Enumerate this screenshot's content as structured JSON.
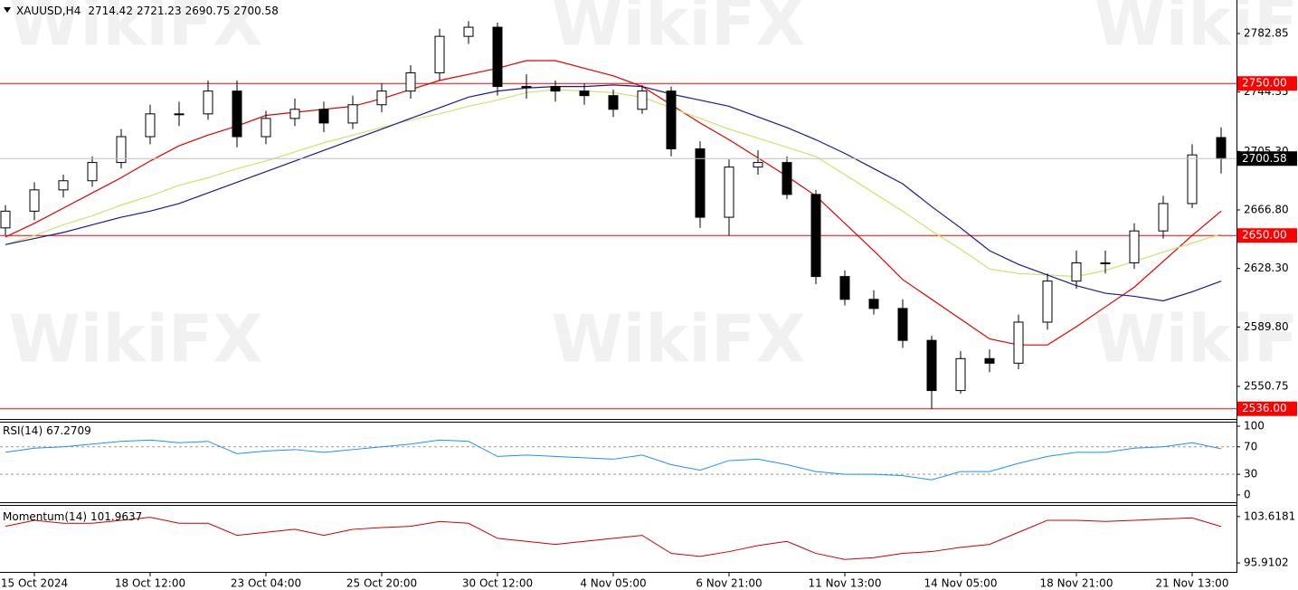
{
  "chart_data": [
    {
      "type": "candlestick",
      "title": "XAUUSD,H4",
      "watermark": "WikiFX",
      "categories": [
        null,
        "15 Oct 2024",
        null,
        null,
        null,
        "18 Oct 12:00",
        null,
        null,
        null,
        "23 Oct 04:00",
        null,
        null,
        null,
        "25 Oct 20:00",
        null,
        null,
        null,
        "30 Oct 12:00",
        null,
        null,
        null,
        "4 Nov 05:00",
        null,
        null,
        null,
        "6 Nov 21:00",
        null,
        null,
        null,
        "11 Nov 13:00",
        null,
        null,
        null,
        "14 Nov 05:00",
        null,
        null,
        null,
        "18 Nov 21:00",
        null,
        null,
        null,
        "21 Nov 13:00",
        null
      ],
      "open": [
        2655,
        2666,
        2680,
        2686,
        2698,
        2715,
        2730,
        2730,
        2745,
        2715,
        2727,
        2733,
        2724,
        2736,
        2745,
        2757,
        2781,
        2787,
        2748,
        2748,
        2745,
        2742,
        2733,
        2745,
        2707,
        2662,
        2695,
        2698,
        2677,
        2623,
        2608,
        2602,
        2581,
        2548,
        2569,
        2566,
        2593,
        2620,
        2632,
        2632,
        2653,
        2671,
        2714.42
      ],
      "high": [
        2670,
        2685,
        2690,
        2702,
        2720,
        2736,
        2738,
        2752,
        2752,
        2732,
        2740,
        2738,
        2742,
        2750,
        2762,
        2786,
        2791,
        2790,
        2756,
        2752,
        2750,
        2746,
        2749,
        2748,
        2712,
        2700,
        2706,
        2702,
        2680,
        2627,
        2614,
        2608,
        2584,
        2574,
        2575,
        2598,
        2625,
        2640,
        2640,
        2658,
        2676,
        2710,
        2721.23
      ],
      "low": [
        2650,
        2660,
        2675,
        2682,
        2694,
        2710,
        2722,
        2726,
        2708,
        2710,
        2722,
        2718,
        2720,
        2731,
        2740,
        2752,
        2776,
        2742,
        2740,
        2738,
        2736,
        2728,
        2730,
        2702,
        2655,
        2650,
        2690,
        2674,
        2618,
        2604,
        2598,
        2576,
        2536,
        2546,
        2560,
        2562,
        2588,
        2615,
        2625,
        2628,
        2648,
        2668,
        2690.75
      ],
      "close": [
        2666,
        2680,
        2686,
        2698,
        2715,
        2730,
        2730,
        2745,
        2715,
        2727,
        2733,
        2724,
        2736,
        2745,
        2757,
        2781,
        2787,
        2748,
        2748,
        2745,
        2742,
        2733,
        2745,
        2707,
        2662,
        2695,
        2698,
        2677,
        2623,
        2608,
        2602,
        2581,
        2548,
        2569,
        2566,
        2593,
        2620,
        2632,
        2632,
        2653,
        2671,
        2703,
        2700.58
      ],
      "ma_lines": [
        {
          "color": "#e00000",
          "values": [
            2649,
            2658,
            2668,
            2678,
            2688,
            2699,
            2709,
            2716,
            2722,
            2729,
            2731,
            2733,
            2735,
            2740,
            2746,
            2752,
            2756,
            2760,
            2765,
            2765,
            2760,
            2755,
            2748,
            2736,
            2724,
            2713,
            2701,
            2689,
            2676,
            2658,
            2640,
            2621,
            2608,
            2595,
            2582,
            2578,
            2578,
            2590,
            2603,
            2616,
            2633,
            2650,
            2666
          ]
        },
        {
          "color": "#c8e66a",
          "values": [
            2644,
            2650,
            2657,
            2663,
            2670,
            2676,
            2683,
            2688,
            2694,
            2699,
            2705,
            2711,
            2716,
            2721,
            2726,
            2730,
            2735,
            2739,
            2744,
            2746,
            2745,
            2744,
            2741,
            2734,
            2727,
            2720,
            2714,
            2708,
            2702,
            2690,
            2678,
            2666,
            2653,
            2641,
            2628,
            2625,
            2624,
            2623,
            2627,
            2633,
            2639,
            2645,
            2651
          ]
        },
        {
          "color": "#1a1a8c",
          "values": [
            2644,
            2648,
            2652,
            2657,
            2662,
            2666,
            2671,
            2678,
            2685,
            2692,
            2699,
            2706,
            2713,
            2720,
            2727,
            2734,
            2741,
            2745,
            2747,
            2748,
            2748,
            2749,
            2748,
            2743,
            2739,
            2735,
            2728,
            2721,
            2713,
            2704,
            2694,
            2684,
            2669,
            2655,
            2640,
            2631,
            2624,
            2617,
            2612,
            2610,
            2607,
            2613,
            2620
          ]
        }
      ],
      "levels": [
        {
          "value": 2750,
          "label": "2750.00"
        },
        {
          "value": 2650,
          "label": "2650.00"
        },
        {
          "value": 2536,
          "label": "2536.00"
        }
      ],
      "level_color": "#ff0000",
      "ylim": [
        2529.3,
        2804.9
      ],
      "yticks": [
        2782.85,
        2744.35,
        {
          "value": 2705.3,
          "label": "2705.30"
        },
        {
          "value": 2666.8,
          "label": "2666.80"
        },
        {
          "value": 2628.3,
          "label": "2628.30"
        },
        {
          "value": 2589.8,
          "label": "2589.80"
        },
        2550.75
      ]
    },
    {
      "type": "line",
      "title": "RSI(14)",
      "color": "#1e90ff",
      "values": [
        62,
        68,
        70,
        74,
        78,
        80,
        76,
        78,
        60,
        64,
        66,
        62,
        66,
        70,
        74,
        80,
        78,
        56,
        58,
        56,
        54,
        52,
        58,
        44,
        36,
        50,
        52,
        44,
        34,
        30,
        30,
        28,
        22,
        34,
        34,
        46,
        56,
        62,
        62,
        68,
        70,
        76,
        67.2709
      ],
      "ylim": [
        -10.7,
        105.3
      ],
      "yticks": [
        0,
        30,
        70,
        100
      ],
      "levels": [
        30,
        70
      ]
    },
    {
      "type": "line",
      "title": "Momentum(14)",
      "color": "#cc0000",
      "values": [
        102,
        103,
        102.5,
        102.5,
        103,
        103.5,
        102.5,
        102.5,
        100.5,
        101,
        101.5,
        100.5,
        101.5,
        101.8,
        102,
        102.8,
        102.5,
        100,
        99.5,
        99,
        99.5,
        100,
        100.5,
        97.5,
        97,
        97.8,
        98.8,
        99.5,
        97.5,
        96.5,
        96.8,
        97.5,
        97.8,
        98.5,
        99,
        101,
        103,
        103,
        102.8,
        103,
        103.2,
        103.4,
        101.9637
      ],
      "ylim": [
        94.428,
        105.397
      ],
      "yticks": [
        95.9102,
        103.6181
      ]
    }
  ]
}
